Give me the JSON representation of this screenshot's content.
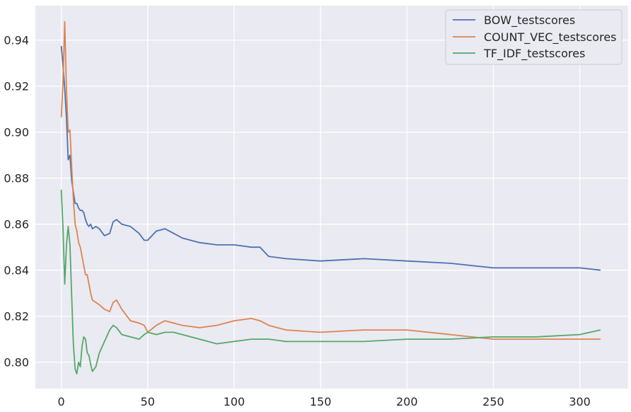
{
  "chart_data": {
    "type": "line",
    "title": "",
    "xlabel": "",
    "ylabel": "",
    "xlim": [
      -15,
      328
    ],
    "ylim": [
      0.7885,
      0.955
    ],
    "grid": true,
    "legend_position": "top-right",
    "background": "#eaeaf2",
    "x_ticks": [
      0,
      50,
      100,
      150,
      200,
      250,
      300
    ],
    "y_ticks": [
      0.8,
      0.82,
      0.84,
      0.86,
      0.88,
      0.9,
      0.92,
      0.94
    ],
    "y_tick_labels": [
      "0.80",
      "0.82",
      "0.84",
      "0.86",
      "0.88",
      "0.90",
      "0.92",
      "0.94"
    ],
    "x_points": [
      0,
      1,
      2,
      3,
      4,
      5,
      6,
      7,
      8,
      9,
      10,
      11,
      12,
      13,
      14,
      15,
      16,
      17,
      18,
      20,
      22,
      25,
      28,
      30,
      32,
      35,
      40,
      45,
      48,
      50,
      55,
      60,
      65,
      70,
      80,
      90,
      100,
      110,
      115,
      120,
      130,
      150,
      175,
      200,
      225,
      250,
      275,
      300,
      312
    ],
    "series": [
      {
        "name": "BOW_testscores",
        "color": "#4c72b0",
        "values": [
          0.9375,
          0.929,
          0.919,
          0.906,
          0.888,
          0.89,
          0.879,
          0.874,
          0.869,
          0.869,
          0.867,
          0.866,
          0.866,
          0.865,
          0.862,
          0.86,
          0.859,
          0.86,
          0.858,
          0.859,
          0.858,
          0.855,
          0.856,
          0.861,
          0.862,
          0.86,
          0.859,
          0.856,
          0.853,
          0.853,
          0.857,
          0.858,
          0.856,
          0.854,
          0.852,
          0.851,
          0.851,
          0.85,
          0.85,
          0.846,
          0.845,
          0.844,
          0.845,
          0.844,
          0.843,
          0.841,
          0.841,
          0.841,
          0.84
        ]
      },
      {
        "name": "COUNT_VEC_testscores",
        "color": "#dd8452",
        "values": [
          0.9065,
          0.922,
          0.948,
          0.918,
          0.9,
          0.901,
          0.885,
          0.871,
          0.86,
          0.857,
          0.852,
          0.85,
          0.846,
          0.842,
          0.838,
          0.838,
          0.834,
          0.83,
          0.827,
          0.826,
          0.825,
          0.823,
          0.822,
          0.826,
          0.827,
          0.823,
          0.818,
          0.817,
          0.816,
          0.813,
          0.816,
          0.818,
          0.817,
          0.816,
          0.815,
          0.816,
          0.818,
          0.819,
          0.818,
          0.816,
          0.814,
          0.813,
          0.814,
          0.814,
          0.812,
          0.81,
          0.81,
          0.81,
          0.81
        ]
      },
      {
        "name": "TF_IDF_testscores",
        "color": "#55a868",
        "values": [
          0.875,
          0.858,
          0.834,
          0.851,
          0.859,
          0.851,
          0.829,
          0.808,
          0.797,
          0.795,
          0.8,
          0.798,
          0.807,
          0.811,
          0.81,
          0.804,
          0.803,
          0.799,
          0.796,
          0.798,
          0.804,
          0.809,
          0.814,
          0.816,
          0.815,
          0.812,
          0.811,
          0.81,
          0.812,
          0.813,
          0.812,
          0.813,
          0.813,
          0.812,
          0.81,
          0.808,
          0.809,
          0.81,
          0.81,
          0.81,
          0.809,
          0.809,
          0.809,
          0.81,
          0.81,
          0.811,
          0.811,
          0.812,
          0.814
        ]
      }
    ]
  }
}
